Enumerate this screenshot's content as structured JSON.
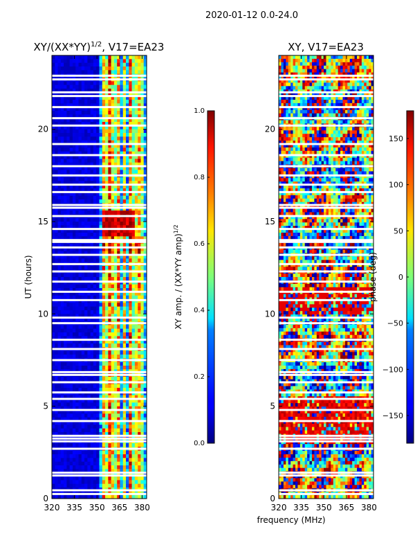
{
  "figure": {
    "suptitle": "2020-01-12 0.0-24.0",
    "xlabel_shared": "frequency (MHz)"
  },
  "chart_data": [
    {
      "type": "heatmap",
      "title_main": "XY/(XX*YY)",
      "title_sup": "1/2",
      "title_tail": ", V17=EA23",
      "ylabel": "UT (hours)",
      "xlim": [
        320,
        383
      ],
      "ylim": [
        0,
        24
      ],
      "xticks": [
        320,
        335,
        350,
        365,
        380
      ],
      "yticks": [
        0,
        5,
        10,
        15,
        20
      ],
      "colorbar": {
        "label_main": "XY amp. / (XX*YY amp)",
        "label_sup": "1/2",
        "range": [
          0.0,
          1.0
        ],
        "ticks": [
          "0.0",
          "0.2",
          "0.4",
          "0.6",
          "0.8",
          "1.0"
        ],
        "colormap": "jet"
      },
      "flagged_ut_hours": [
        0.25,
        0.45,
        1.25,
        1.4,
        2.7,
        3.1,
        3.25,
        3.4,
        4.2,
        4.8,
        5.4,
        5.75,
        6.3,
        6.7,
        6.85,
        7.5,
        8.1,
        8.6,
        9.5,
        9.8,
        10.75,
        11.2,
        11.75,
        12.3,
        12.7,
        13.2,
        13.6,
        13.9,
        14.0,
        14.6,
        15.3,
        15.75,
        15.9,
        16.6,
        17.0,
        17.5,
        18.0,
        18.6,
        19.2,
        20.2,
        20.6,
        21.2,
        21.8,
        22.0,
        22.7,
        22.9
      ]
    },
    {
      "type": "heatmap",
      "title": "XY, V17=EA23",
      "xlim": [
        320,
        383
      ],
      "ylim": [
        0,
        24
      ],
      "xticks": [
        320,
        335,
        350,
        365,
        380
      ],
      "yticks": [
        0,
        5,
        10,
        15,
        20
      ],
      "colorbar": {
        "label": "phase (deg)",
        "range": [
          -180,
          180
        ],
        "ticks": [
          "150",
          "100",
          "50",
          "0",
          "−50",
          "−100",
          "−150"
        ],
        "tick_values": [
          150,
          100,
          50,
          0,
          -50,
          -100,
          -150
        ],
        "colormap": "jet"
      }
    }
  ]
}
